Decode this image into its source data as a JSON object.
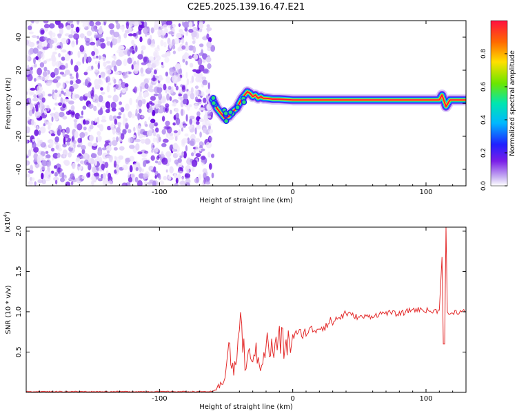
{
  "figure_title": "C2E5.2025.139.16.47.E21",
  "chart_data": [
    {
      "type": "heatmap",
      "xlabel": "Height of straight line (km)",
      "ylabel": "Frequency (Hz)",
      "xlim": [
        -200,
        130
      ],
      "ylim": [
        -50,
        50
      ],
      "x_ticks": [
        -100,
        0,
        100
      ],
      "y_ticks": [
        -40,
        -20,
        0,
        20,
        40
      ],
      "colorbar": {
        "label": "Normalized spectral amplitude",
        "range": [
          0,
          1
        ],
        "ticks": [
          "0.0",
          "0.2",
          "0.4",
          "0.6",
          "0.8"
        ]
      },
      "noise_region_x": [
        -200,
        -60
      ],
      "signal_track": {
        "x": [
          -60,
          -57,
          -54,
          -51,
          -48,
          -45,
          -42,
          -40,
          -38,
          -36,
          -34,
          -32,
          -30,
          -28,
          -26,
          -24,
          -22,
          -20,
          -15,
          -10,
          0,
          20,
          50,
          80,
          90,
          100,
          110,
          112,
          115,
          118,
          120,
          125,
          130
        ],
        "frequency": [
          2,
          -3,
          -6,
          -9,
          -8,
          -5,
          -3,
          0,
          3,
          5,
          7,
          6,
          4,
          5,
          3,
          4,
          3,
          3,
          2.5,
          2.5,
          2,
          2,
          2,
          2,
          2,
          2,
          2,
          5,
          -2,
          2,
          2,
          2,
          2
        ]
      }
    },
    {
      "type": "line",
      "xlabel": "Height of straight line (km)",
      "ylabel": "SNR (10 * v/v)",
      "y_multiplier": "(x10^4)",
      "xlim": [
        -200,
        130
      ],
      "ylim": [
        0,
        2.05
      ],
      "x_ticks": [
        -100,
        0,
        100
      ],
      "y_ticks": [
        "0.5",
        "1.0",
        "1.5",
        "2.0"
      ],
      "series": [
        {
          "color": "#e32b2b",
          "x": [
            -200,
            -150,
            -100,
            -60,
            -55,
            -50,
            -48,
            -45,
            -42,
            -40,
            -35,
            -30,
            -25,
            -20,
            -15,
            -10,
            -5,
            0,
            10,
            20,
            30,
            40,
            50,
            60,
            70,
            80,
            90,
            100,
            105,
            110,
            112,
            113,
            114,
            115,
            116,
            117,
            118,
            120,
            125,
            130
          ],
          "y": [
            0.01,
            0.01,
            0.01,
            0.01,
            0.05,
            0.3,
            0.6,
            0.25,
            0.4,
            0.95,
            0.3,
            0.55,
            0.35,
            0.6,
            0.5,
            0.65,
            0.55,
            0.7,
            0.75,
            0.8,
            0.88,
            0.98,
            0.93,
            0.95,
            0.99,
            0.97,
            1.03,
            1.02,
            1.0,
            1.02,
            1.68,
            0.6,
            0.6,
            2.05,
            1.0,
            0.97,
            0.97,
            1.0,
            1.0,
            1.0
          ]
        }
      ]
    }
  ]
}
